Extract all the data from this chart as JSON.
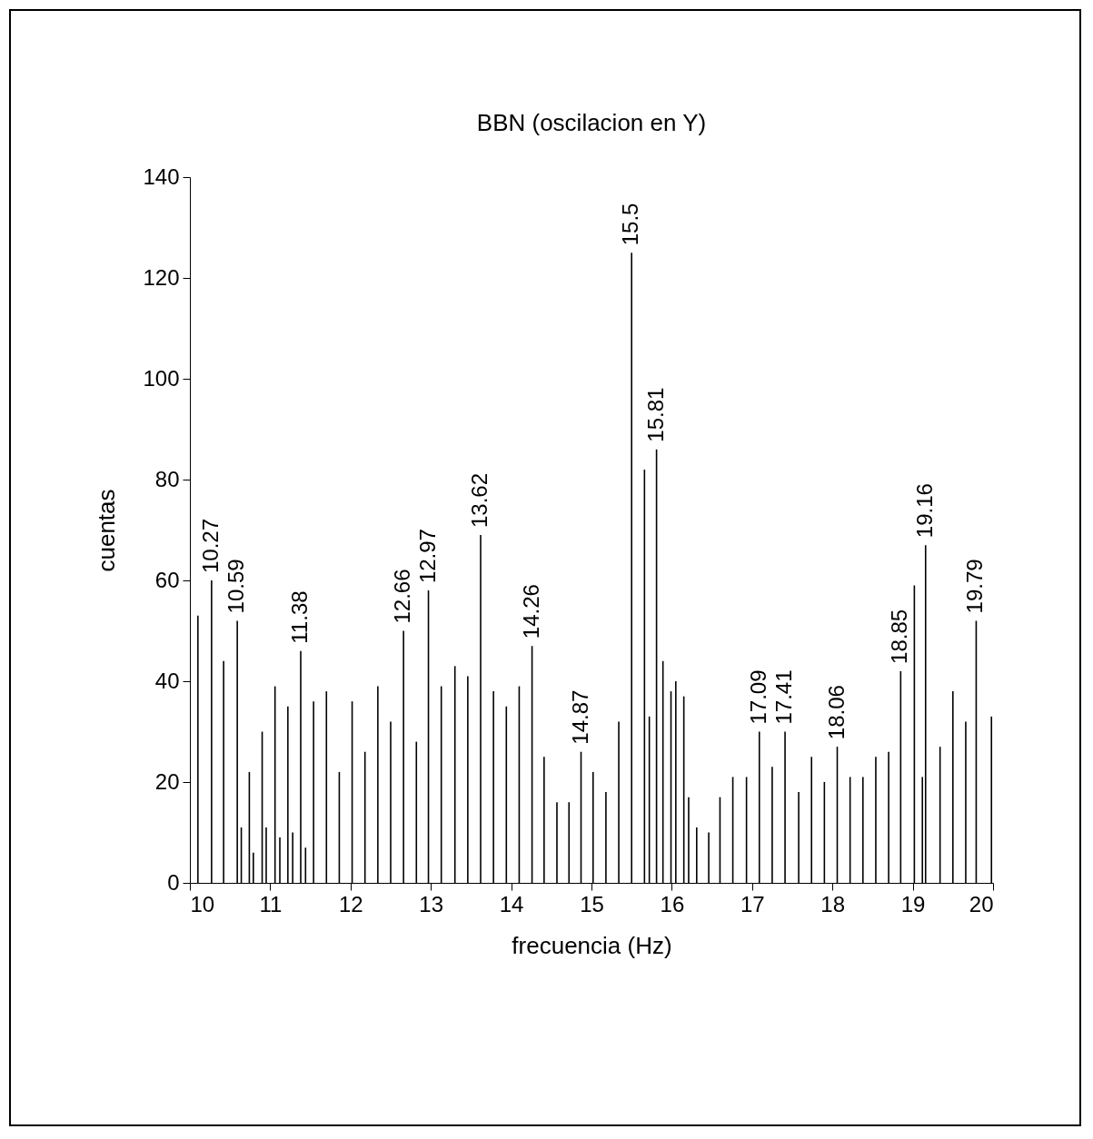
{
  "chart_data": {
    "type": "bar",
    "title": "BBN (oscilacion en Y)",
    "xlabel": "frecuencia (Hz)",
    "ylabel": "cuentas",
    "x": [
      10.1,
      10.27,
      10.42,
      10.59,
      10.64,
      10.74,
      10.79,
      10.9,
      10.95,
      11.06,
      11.12,
      11.22,
      11.28,
      11.38,
      11.44,
      11.54,
      11.7,
      11.86,
      12.02,
      12.18,
      12.34,
      12.5,
      12.66,
      12.82,
      12.97,
      13.13,
      13.3,
      13.46,
      13.62,
      13.78,
      13.94,
      14.1,
      14.26,
      14.41,
      14.57,
      14.72,
      14.87,
      15.02,
      15.18,
      15.34,
      15.5,
      15.66,
      15.72,
      15.81,
      15.89,
      15.99,
      16.05,
      16.15,
      16.21,
      16.31,
      16.46,
      16.6,
      16.76,
      16.93,
      17.09,
      17.25,
      17.41,
      17.58,
      17.74,
      17.9,
      18.06,
      18.22,
      18.38,
      18.54,
      18.7,
      18.85,
      19.02,
      19.12,
      19.16,
      19.34,
      19.5,
      19.66,
      19.79,
      19.98
    ],
    "series": [
      {
        "color": "#000000",
        "values": [
          53,
          60,
          44,
          52,
          11,
          22,
          6,
          30,
          11,
          39,
          9,
          35,
          10,
          46,
          7,
          36,
          38,
          22,
          36,
          26,
          39,
          32,
          50,
          28,
          58,
          39,
          43,
          41,
          69,
          38,
          35,
          39,
          47,
          25,
          16,
          16,
          26,
          22,
          18,
          32,
          125,
          82,
          33,
          86,
          44,
          38,
          40,
          37,
          17,
          11,
          10,
          17,
          21,
          21,
          30,
          23,
          30,
          18,
          25,
          20,
          27,
          21,
          21,
          25,
          26,
          42,
          59,
          21,
          67,
          27,
          38,
          32,
          52,
          33
        ]
      }
    ],
    "xlim": [
      10,
      20
    ],
    "xticks": [
      10,
      11,
      12,
      13,
      14,
      15,
      16,
      17,
      18,
      19,
      20
    ],
    "ylim": [
      0,
      140
    ],
    "yticks": [
      0,
      20,
      40,
      60,
      80,
      100,
      120,
      140
    ],
    "grid": false,
    "annotations": [
      {
        "text": "10.27",
        "x": 10.27,
        "y": 60
      },
      {
        "text": "10.59",
        "x": 10.59,
        "y": 52
      },
      {
        "text": "11.38",
        "x": 11.38,
        "y": 46
      },
      {
        "text": "12.66",
        "x": 12.66,
        "y": 50
      },
      {
        "text": "12.97",
        "x": 12.97,
        "y": 58
      },
      {
        "text": "13.62",
        "x": 13.62,
        "y": 69
      },
      {
        "text": "14.26",
        "x": 14.26,
        "y": 47
      },
      {
        "text": "14.87",
        "x": 14.87,
        "y": 26
      },
      {
        "text": "15.5",
        "x": 15.5,
        "y": 125
      },
      {
        "text": "15.81",
        "x": 15.81,
        "y": 86
      },
      {
        "text": "17.09",
        "x": 17.09,
        "y": 30
      },
      {
        "text": "17.41",
        "x": 17.41,
        "y": 30
      },
      {
        "text": "18.06",
        "x": 18.06,
        "y": 27
      },
      {
        "text": "18.85",
        "x": 18.85,
        "y": 42
      },
      {
        "text": "19.16",
        "x": 19.16,
        "y": 67
      },
      {
        "text": "19.79",
        "x": 19.79,
        "y": 52
      }
    ]
  }
}
